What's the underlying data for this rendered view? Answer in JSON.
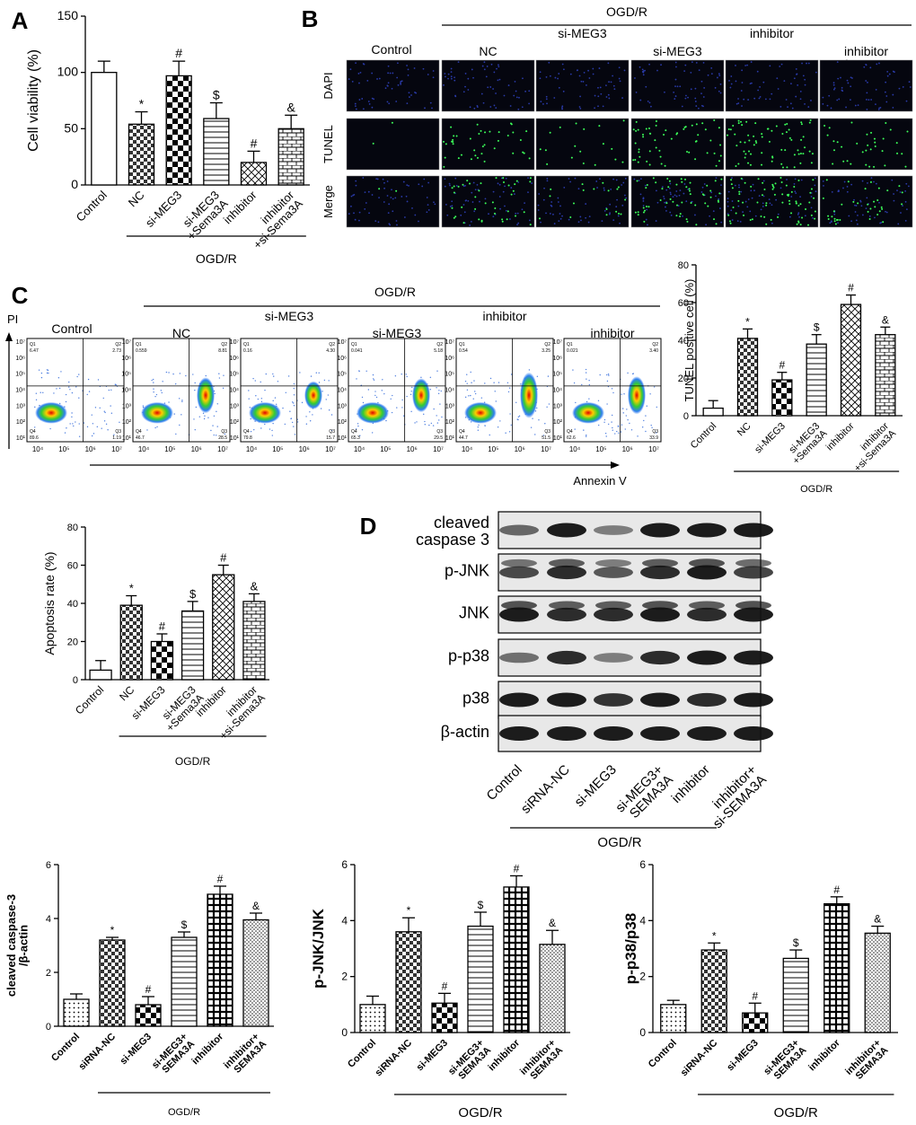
{
  "panels": {
    "A": {
      "letter": "A"
    },
    "B": {
      "letter": "B",
      "group": "OGD/R",
      "control": "Control",
      "columns": [
        "NC",
        "si-MEG3",
        "si-MEG3\n+Sema3A",
        "inhibitor",
        "inhibitor\n+si-Sema3A"
      ],
      "rows": [
        "DAPI",
        "TUNEL",
        "Merge"
      ]
    },
    "C": {
      "letter": "C",
      "group": "OGD/R",
      "control": "Control",
      "y_axis": "PI",
      "x_axis": "Annexin V",
      "columns": [
        "NC",
        "si-MEG3",
        "si-MEG3\n+Sema3A",
        "inhibitor",
        "inhibitor\n+si-Sema3A"
      ],
      "decade_labels": [
        "10⁴",
        "10⁵",
        "10⁶",
        "10⁷"
      ],
      "quadrant_values": [
        {
          "q1": "6.47",
          "q2": "2.73",
          "q3": "1.19",
          "q4": "89.6"
        },
        {
          "q1": "0.559",
          "q2": "8.81",
          "q3": "28.5",
          "q4": "46.7"
        },
        {
          "q1": "0.16",
          "q2": "4.30",
          "q3": "15.7",
          "q4": "79.8"
        },
        {
          "q1": "0.041",
          "q2": "5.18",
          "q3": "29.5",
          "q4": "65.3"
        },
        {
          "q1": "0.54",
          "q2": "3.25",
          "q3": "51.5",
          "q4": "44.7"
        },
        {
          "q1": "0.021",
          "q2": "3.40",
          "q3": "33.9",
          "q4": "62.6"
        }
      ]
    },
    "D": {
      "letter": "D",
      "group": "OGD/R",
      "proteins": [
        "cleaved\ncaspase 3",
        "p-JNK",
        "JNK",
        "p-p38",
        "p38",
        "β-actin"
      ],
      "lanes": [
        "Control",
        "siRNA-NC",
        "si-MEG3",
        "si-MEG3+\nSEMA3A",
        "inhibitor",
        "inhibitor+\nsi-SEMA3A"
      ]
    }
  },
  "chart_data": [
    {
      "type": "bar",
      "id": "viability",
      "ylabel": "Cell viability (%)",
      "ylim": [
        0,
        150
      ],
      "yticks": [
        0,
        50,
        100,
        150
      ],
      "categories": [
        "Control",
        "NC",
        "si-MEG3",
        "si-MEG3\n+Sema3A",
        "inhibitor",
        "inhibitor\n+si-Sema3A"
      ],
      "values": [
        100,
        54,
        97,
        59,
        20,
        50
      ],
      "errors": [
        10,
        11,
        13,
        14,
        10,
        12
      ],
      "marks": [
        "",
        "*",
        "#",
        "$",
        "#",
        "&"
      ],
      "group_label": "OGD/R",
      "patterns": [
        "white",
        "checker",
        "bigchecker",
        "hlines",
        "cross",
        "brick"
      ]
    },
    {
      "type": "bar",
      "id": "tunel",
      "ylabel": "TUNEL positive cell (%)",
      "ylim": [
        0,
        80
      ],
      "yticks": [
        0,
        20,
        40,
        60,
        80
      ],
      "categories": [
        "Control",
        "NC",
        "si-MEG3",
        "si-MEG3\n+Sema3A",
        "inhibitor",
        "inhibitor\n+si-Sema3A"
      ],
      "values": [
        4,
        41,
        19,
        38,
        59,
        43
      ],
      "errors": [
        4,
        5,
        4,
        5,
        5,
        4
      ],
      "marks": [
        "",
        "*",
        "#",
        "$",
        "#",
        "&"
      ],
      "group_label": "OGD/R",
      "patterns": [
        "white",
        "checker",
        "bigchecker",
        "hlines",
        "cross",
        "brick"
      ]
    },
    {
      "type": "bar",
      "id": "apoptosis",
      "ylabel": "Apoptosis rate (%)",
      "ylim": [
        0,
        80
      ],
      "yticks": [
        0,
        20,
        40,
        60,
        80
      ],
      "categories": [
        "Control",
        "NC",
        "si-MEG3",
        "si-MEG3\n+Sema3A",
        "inhibitor",
        "inhibitor\n+si-Sema3A"
      ],
      "values": [
        5,
        39,
        20,
        36,
        55,
        41
      ],
      "errors": [
        5,
        5,
        4,
        5,
        5,
        4
      ],
      "marks": [
        "",
        "*",
        "#",
        "$",
        "#",
        "&"
      ],
      "group_label": "OGD/R",
      "patterns": [
        "white",
        "checker",
        "bigchecker",
        "hlines",
        "cross",
        "brick"
      ]
    },
    {
      "type": "bar",
      "id": "caspase",
      "ylabel": "cleaved caspase-3\n/β-actin",
      "ylim": [
        0,
        6
      ],
      "yticks": [
        0,
        2,
        4,
        6
      ],
      "categories": [
        "Control",
        "siRNA-NC",
        "si-MEG3",
        "si-MEG3+\nSEMA3A",
        "inhibitor",
        "inhibitor+\nSEMA3A"
      ],
      "values": [
        1.0,
        3.2,
        0.8,
        3.3,
        4.9,
        3.95
      ],
      "errors": [
        0.2,
        0.1,
        0.3,
        0.2,
        0.3,
        0.25
      ],
      "marks": [
        "",
        "*",
        "#",
        "$",
        "#",
        "&"
      ],
      "group_label": "OGD/R",
      "patterns": [
        "dots",
        "checker",
        "bigchecker",
        "hlines",
        "grid",
        "fine"
      ]
    },
    {
      "type": "bar",
      "id": "pjnk",
      "ylabel": "p-JNK/JNK",
      "ylim": [
        0,
        6
      ],
      "yticks": [
        0,
        2,
        4,
        6
      ],
      "categories": [
        "Control",
        "siRNA-NC",
        "si-MEG3",
        "si-MEG3+\nSEMA3A",
        "inhibitor",
        "inhibitor+\nSEMA3A"
      ],
      "values": [
        1.0,
        3.6,
        1.05,
        3.8,
        5.2,
        3.15
      ],
      "errors": [
        0.3,
        0.5,
        0.35,
        0.5,
        0.4,
        0.5
      ],
      "marks": [
        "",
        "*",
        "#",
        "$",
        "#",
        "&"
      ],
      "group_label": "OGD/R",
      "patterns": [
        "dots",
        "checker",
        "bigchecker",
        "hlines",
        "grid",
        "fine"
      ]
    },
    {
      "type": "bar",
      "id": "pp38",
      "ylabel": "p-p38/p38",
      "ylim": [
        0,
        6
      ],
      "yticks": [
        0,
        2,
        4,
        6
      ],
      "categories": [
        "Control",
        "siRNA-NC",
        "si-MEG3",
        "si-MEG3+\nSEMA3A",
        "inhibitor",
        "inhibitor+\nSEMA3A"
      ],
      "values": [
        1.0,
        2.95,
        0.7,
        2.65,
        4.6,
        3.55
      ],
      "errors": [
        0.15,
        0.25,
        0.35,
        0.3,
        0.25,
        0.25
      ],
      "marks": [
        "",
        "*",
        "#",
        "$",
        "#",
        "&"
      ],
      "group_label": "OGD/R",
      "patterns": [
        "dots",
        "checker",
        "bigchecker",
        "hlines",
        "grid",
        "fine"
      ]
    }
  ]
}
